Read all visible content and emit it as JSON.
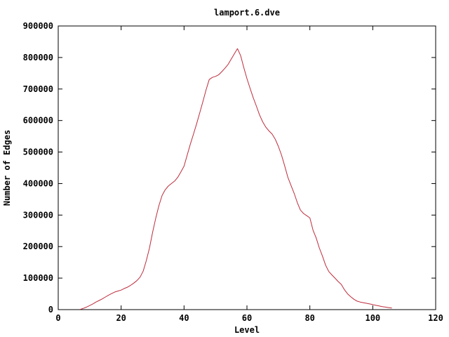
{
  "window": {
    "background": "#ffffff"
  },
  "chart_data": {
    "type": "line",
    "title": "lamport.6.dve",
    "xlabel": "Level",
    "ylabel": "Number of Edges",
    "xlim": [
      0,
      120
    ],
    "ylim": [
      0,
      900000
    ],
    "xticks": [
      0,
      20,
      40,
      60,
      80,
      100,
      120
    ],
    "yticks": [
      0,
      100000,
      200000,
      300000,
      400000,
      500000,
      600000,
      700000,
      800000,
      900000
    ],
    "grid": false,
    "legend": "none",
    "border_color": "#000000",
    "line_color": "#bd2c3c",
    "tick_length": 6,
    "ticks_mirrored": true,
    "series": [
      {
        "name": "lamport.6.dve",
        "points": [
          [
            7,
            1000
          ],
          [
            8,
            4000
          ],
          [
            9,
            8000
          ],
          [
            10,
            13000
          ],
          [
            11,
            18000
          ],
          [
            12,
            24000
          ],
          [
            13,
            29000
          ],
          [
            14,
            34000
          ],
          [
            15,
            40000
          ],
          [
            16,
            46000
          ],
          [
            17,
            51000
          ],
          [
            18,
            56000
          ],
          [
            19,
            59000
          ],
          [
            20,
            62000
          ],
          [
            21,
            67000
          ],
          [
            22,
            71000
          ],
          [
            23,
            77000
          ],
          [
            24,
            84000
          ],
          [
            25,
            92000
          ],
          [
            26,
            103000
          ],
          [
            27,
            122000
          ],
          [
            28,
            155000
          ],
          [
            29,
            195000
          ],
          [
            30,
            245000
          ],
          [
            31,
            290000
          ],
          [
            32,
            330000
          ],
          [
            33,
            362000
          ],
          [
            34,
            380000
          ],
          [
            35,
            392000
          ],
          [
            36,
            400000
          ],
          [
            37,
            408000
          ],
          [
            38,
            420000
          ],
          [
            39,
            437000
          ],
          [
            40,
            455000
          ],
          [
            41,
            490000
          ],
          [
            42,
            525000
          ],
          [
            43,
            557000
          ],
          [
            44,
            590000
          ],
          [
            45,
            625000
          ],
          [
            46,
            660000
          ],
          [
            47,
            697000
          ],
          [
            48,
            730000
          ],
          [
            49,
            737000
          ],
          [
            50,
            740000
          ],
          [
            51,
            745000
          ],
          [
            52,
            755000
          ],
          [
            53,
            766000
          ],
          [
            54,
            778000
          ],
          [
            55,
            795000
          ],
          [
            56,
            812000
          ],
          [
            57,
            828000
          ],
          [
            58,
            806000
          ],
          [
            59,
            768000
          ],
          [
            60,
            733000
          ],
          [
            61,
            702000
          ],
          [
            62,
            672000
          ],
          [
            63,
            646000
          ],
          [
            64,
            618000
          ],
          [
            65,
            596000
          ],
          [
            66,
            579000
          ],
          [
            67,
            567000
          ],
          [
            68,
            557000
          ],
          [
            69,
            541000
          ],
          [
            70,
            518000
          ],
          [
            71,
            490000
          ],
          [
            72,
            456000
          ],
          [
            73,
            420000
          ],
          [
            74,
            394000
          ],
          [
            75,
            369000
          ],
          [
            76,
            340000
          ],
          [
            77,
            316000
          ],
          [
            78,
            305000
          ],
          [
            79,
            298000
          ],
          [
            80,
            291000
          ],
          [
            81,
            252000
          ],
          [
            82,
            228000
          ],
          [
            83,
            196000
          ],
          [
            84,
            170000
          ],
          [
            85,
            141000
          ],
          [
            86,
            121000
          ],
          [
            87,
            110000
          ],
          [
            88,
            100000
          ],
          [
            89,
            89000
          ],
          [
            90,
            80000
          ],
          [
            91,
            63000
          ],
          [
            92,
            50000
          ],
          [
            93,
            41000
          ],
          [
            94,
            33000
          ],
          [
            95,
            27000
          ],
          [
            96,
            24000
          ],
          [
            97,
            22000
          ],
          [
            98,
            20000
          ],
          [
            99,
            18000
          ],
          [
            100,
            16000
          ],
          [
            101,
            13500
          ],
          [
            102,
            11500
          ],
          [
            103,
            9500
          ],
          [
            104,
            8000
          ],
          [
            105,
            6500
          ],
          [
            106,
            5000
          ]
        ]
      }
    ]
  }
}
